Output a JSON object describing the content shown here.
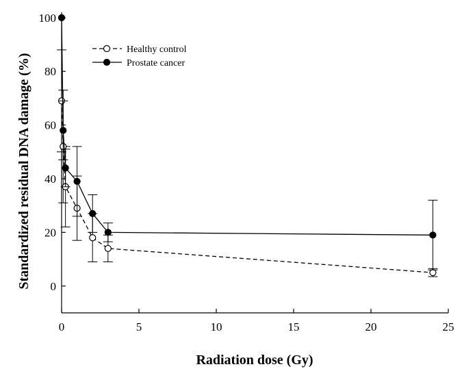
{
  "chart_data": {
    "type": "line",
    "title": "",
    "xlabel": "Radiation dose (Gy)",
    "ylabel": "Standardized residual DNA damage (%)",
    "xlim": [
      0,
      25
    ],
    "ylim": [
      -10,
      102
    ],
    "xticks": [
      0,
      5,
      10,
      15,
      20,
      25
    ],
    "yticks": [
      0,
      20,
      40,
      60,
      80,
      100
    ],
    "grid": false,
    "legend_position": "top-left",
    "series": [
      {
        "name": "Healthy control",
        "marker": "open-circle",
        "line_style": "dashed",
        "color": "#000000",
        "x": [
          0,
          0.1,
          0.25,
          1,
          2,
          3,
          24
        ],
        "y": [
          69,
          52,
          37,
          29,
          18,
          14,
          5
        ],
        "err": [
          19,
          21,
          15,
          12,
          9,
          5,
          1.5
        ]
      },
      {
        "name": "Prostate cancer",
        "marker": "filled-circle",
        "line_style": "solid",
        "color": "#000000",
        "x": [
          0,
          0.1,
          0.25,
          1,
          2,
          3,
          24
        ],
        "y": [
          100,
          58,
          44,
          39,
          27,
          20,
          19
        ],
        "err": [
          0,
          11,
          7,
          13,
          7,
          3.5,
          13
        ]
      }
    ]
  }
}
